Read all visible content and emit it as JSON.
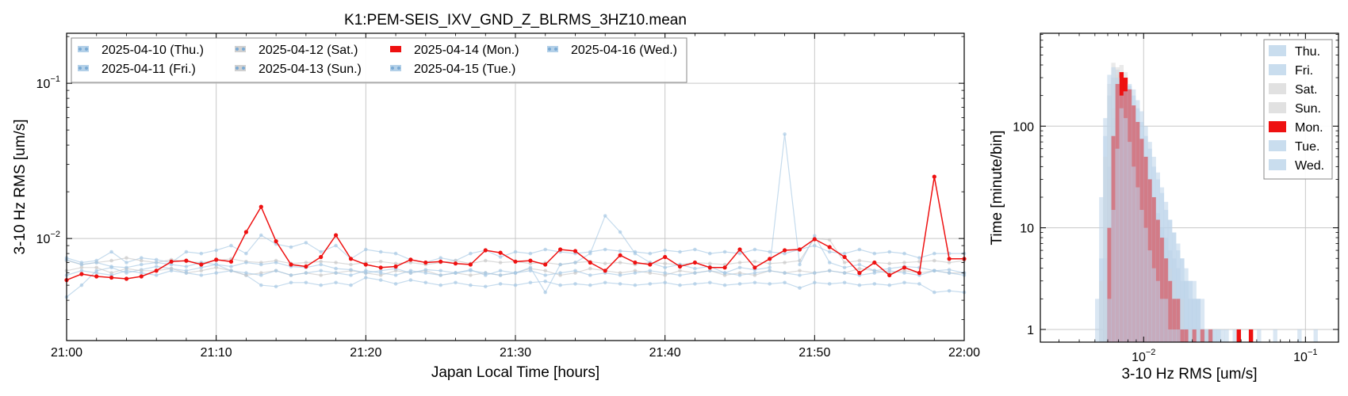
{
  "chart_data": [
    {
      "type": "line",
      "title": "K1:PEM-SEIS_IXV_GND_Z_BLRMS_3HZ10.mean",
      "xlabel": "Japan Local Time [hours]",
      "ylabel": "3-10 Hz RMS [um/s]",
      "xscale": "linear",
      "yscale": "log",
      "x_unit": "minutes after 21:00",
      "xlim": [
        0,
        60
      ],
      "ylim": [
        0.0022,
        0.21
      ],
      "xticks": [
        0,
        10,
        20,
        30,
        40,
        50,
        60
      ],
      "xtick_labels": [
        "21:00",
        "21:10",
        "21:20",
        "21:30",
        "21:40",
        "21:50",
        "22:00"
      ],
      "yticks": [
        0.01,
        0.1
      ],
      "ytick_labels": [
        "10^-2",
        "10^-1"
      ],
      "grid": true,
      "legend_position": "top-left",
      "legend_columns": 4,
      "x": [
        0,
        1,
        2,
        3,
        4,
        5,
        6,
        7,
        8,
        9,
        10,
        11,
        12,
        13,
        14,
        15,
        16,
        17,
        18,
        19,
        20,
        21,
        22,
        23,
        24,
        25,
        26,
        27,
        28,
        29,
        30,
        31,
        32,
        33,
        34,
        35,
        36,
        37,
        38,
        39,
        40,
        41,
        42,
        43,
        44,
        45,
        46,
        47,
        48,
        49,
        50,
        51,
        52,
        53,
        54,
        55,
        56,
        57,
        58,
        59,
        60
      ],
      "series": [
        {
          "name": "2025-04-10 (Thu.)",
          "color": "#a6c8e4",
          "values": [
            0.0042,
            0.005,
            0.0062,
            0.0065,
            0.006,
            0.0063,
            0.0066,
            0.0064,
            0.0062,
            0.0065,
            0.0068,
            0.0062,
            0.0058,
            0.005,
            0.0049,
            0.0052,
            0.0052,
            0.005,
            0.0052,
            0.005,
            0.0056,
            0.0054,
            0.0051,
            0.0054,
            0.0052,
            0.005,
            0.0052,
            0.005,
            0.0049,
            0.0051,
            0.005,
            0.0052,
            0.0053,
            0.005,
            0.0051,
            0.005,
            0.0052,
            0.0051,
            0.005,
            0.0051,
            0.0052,
            0.005,
            0.0051,
            0.0052,
            0.005,
            0.0051,
            0.0052,
            0.0051,
            0.0052,
            0.0048,
            0.0052,
            0.0051,
            0.0052,
            0.005,
            0.0051,
            0.005,
            0.0052,
            0.0051,
            0.0045,
            0.0046,
            0.0045
          ]
        },
        {
          "name": "2025-04-11 (Fri.)",
          "color": "#a6c8e4",
          "values": [
            0.0075,
            0.007,
            0.0072,
            0.0082,
            0.007,
            0.0075,
            0.0073,
            0.007,
            0.0082,
            0.008,
            0.0084,
            0.009,
            0.008,
            0.0105,
            0.0092,
            0.0088,
            0.0094,
            0.0082,
            0.009,
            0.0074,
            0.0085,
            0.0082,
            0.008,
            0.0073,
            0.007,
            0.0075,
            0.0072,
            0.008,
            0.0084,
            0.0076,
            0.0082,
            0.008,
            0.0085,
            0.0082,
            0.008,
            0.0082,
            0.0085,
            0.0083,
            0.0082,
            0.008,
            0.0084,
            0.0082,
            0.0085,
            0.008,
            0.0082,
            0.008,
            0.0085,
            0.0082,
            0.008,
            0.0085,
            0.009,
            0.0082,
            0.008,
            0.0085,
            0.008,
            0.0082,
            0.008,
            0.0075,
            0.008,
            0.008,
            0.008
          ]
        },
        {
          "name": "2025-04-12 (Sat.)",
          "color": "#c8c8c8",
          "values": [
            0.0062,
            0.0065,
            0.0065,
            0.006,
            0.0064,
            0.0062,
            0.0062,
            0.0064,
            0.006,
            0.0062,
            0.0065,
            0.0062,
            0.0058,
            0.006,
            0.0062,
            0.0058,
            0.006,
            0.0058,
            0.006,
            0.0062,
            0.006,
            0.0058,
            0.0062,
            0.006,
            0.0062,
            0.0058,
            0.006,
            0.0058,
            0.006,
            0.0058,
            0.006,
            0.0064,
            0.0062,
            0.0058,
            0.006,
            0.0064,
            0.0062,
            0.006,
            0.0062,
            0.006,
            0.0058,
            0.0062,
            0.006,
            0.0062,
            0.0058,
            0.006,
            0.0058,
            0.0062,
            0.006,
            0.0062,
            0.006,
            0.0062,
            0.006,
            0.0064,
            0.0062,
            0.006,
            0.0062,
            0.006,
            0.0062,
            0.006,
            0.006
          ]
        },
        {
          "name": "2025-04-13 (Sun.)",
          "color": "#c8c8c8",
          "values": [
            0.0072,
            0.0068,
            0.007,
            0.0072,
            0.0075,
            0.0072,
            0.007,
            0.0073,
            0.0071,
            0.007,
            0.0072,
            0.0074,
            0.0071,
            0.007,
            0.0072,
            0.0069,
            0.007,
            0.0071,
            0.007,
            0.0068,
            0.007,
            0.0071,
            0.0069,
            0.007,
            0.0068,
            0.007,
            0.0072,
            0.0069,
            0.0072,
            0.007,
            0.0071,
            0.0069,
            0.007,
            0.0068,
            0.007,
            0.0071,
            0.0069,
            0.007,
            0.0068,
            0.007,
            0.0069,
            0.0068,
            0.007,
            0.0069,
            0.0068,
            0.007,
            0.0071,
            0.0069,
            0.007,
            0.0072,
            0.01,
            0.0098,
            0.007,
            0.0072,
            0.007,
            0.0069,
            0.007,
            0.0071,
            0.0072,
            0.007,
            0.0072
          ]
        },
        {
          "name": "2025-04-14 (Mon.)",
          "color": "#ee1111",
          "values": [
            0.0054,
            0.0059,
            0.0057,
            0.0056,
            0.0055,
            0.0057,
            0.0062,
            0.0071,
            0.0072,
            0.0068,
            0.0073,
            0.0071,
            0.011,
            0.016,
            0.0096,
            0.0068,
            0.0066,
            0.0076,
            0.0105,
            0.0074,
            0.0068,
            0.0065,
            0.0066,
            0.0073,
            0.007,
            0.0071,
            0.0069,
            0.0068,
            0.0084,
            0.0081,
            0.0071,
            0.0072,
            0.0068,
            0.0085,
            0.0083,
            0.007,
            0.0062,
            0.0078,
            0.007,
            0.0068,
            0.0076,
            0.0066,
            0.007,
            0.0065,
            0.0065,
            0.0085,
            0.0065,
            0.0074,
            0.0084,
            0.0085,
            0.0099,
            0.0088,
            0.0076,
            0.006,
            0.007,
            0.0058,
            0.0065,
            0.006,
            0.025,
            0.0074,
            0.0074
          ]
        },
        {
          "name": "2025-04-15 (Tue.)",
          "color": "#a6c8e4",
          "values": [
            0.0073,
            0.0068,
            0.007,
            0.0066,
            0.0065,
            0.0068,
            0.007,
            0.0068,
            0.0066,
            0.007,
            0.0068,
            0.0066,
            0.007,
            0.0068,
            0.007,
            0.0066,
            0.0065,
            0.0068,
            0.0064,
            0.0063,
            0.006,
            0.0062,
            0.0064,
            0.006,
            0.0063,
            0.0062,
            0.006,
            0.0063,
            0.0058,
            0.0062,
            0.006,
            0.0065,
            0.0045,
            0.0068,
            0.007,
            0.008,
            0.014,
            0.011,
            0.008,
            0.007,
            0.0065,
            0.0068,
            0.0064,
            0.0066,
            0.006,
            0.0065,
            0.0063,
            0.0065,
            0.047,
            0.0068,
            0.0104,
            0.007,
            0.0065,
            0.0068,
            0.0062,
            0.0064,
            0.0066,
            0.0065,
            0.0062,
            0.0063,
            0.006
          ]
        },
        {
          "name": "2025-04-16 (Wed.)",
          "color": "#a6c8e4",
          "values": [
            0.0058,
            0.0062,
            0.006,
            0.0058,
            0.0062,
            0.006,
            0.0058,
            0.0062,
            0.006,
            0.0058,
            0.006,
            0.0062,
            0.006,
            0.0058,
            0.0062,
            0.0058,
            0.006,
            0.0062,
            0.006,
            0.0058,
            0.0062,
            0.006,
            0.0058,
            0.0062,
            0.006,
            0.0058,
            0.006,
            0.0062,
            0.006,
            0.0058,
            0.006,
            0.0062,
            0.0058,
            0.006,
            0.0062,
            0.0058,
            0.006,
            0.0058,
            0.006,
            0.0062,
            0.006,
            0.0058,
            0.006,
            0.0062,
            0.006,
            0.0058,
            0.006,
            0.0062,
            0.006,
            0.0058,
            0.006,
            0.0062,
            0.006,
            0.0058,
            0.006,
            0.0062,
            0.006,
            0.0058,
            0.0062,
            0.006,
            0.0058
          ]
        }
      ]
    },
    {
      "type": "bar",
      "subtype": "histogram",
      "xlabel": "3-10 Hz RMS [um/s]",
      "ylabel": "Time [minute/bin]",
      "xscale": "log",
      "yscale": "log",
      "xlim": [
        0.0023,
        0.16
      ],
      "ylim": [
        0.75,
        820
      ],
      "xticks": [
        0.01,
        0.1
      ],
      "xtick_labels": [
        "10^-2",
        "10^-1"
      ],
      "yticks": [
        1,
        10,
        100
      ],
      "ytick_labels": [
        "1",
        "10",
        "100"
      ],
      "grid": true,
      "legend_position": "top-right",
      "bin_edges_log10_start": -2.4,
      "bin_width_log10": 0.025,
      "series": [
        {
          "name": "Thu.",
          "color": "#bcd4ea",
          "counts": [
            0,
            0,
            0,
            0,
            2,
            20,
            80,
            200,
            300,
            360,
            280,
            200,
            140,
            100,
            70,
            50,
            35,
            25,
            18,
            14,
            10,
            8,
            6,
            5,
            4,
            3,
            3,
            2,
            2,
            2,
            1,
            1,
            1,
            1,
            1,
            0,
            1,
            0,
            1,
            0,
            0,
            0,
            1,
            0,
            1,
            0,
            0,
            0,
            1,
            0,
            0,
            0,
            0,
            0,
            1,
            0,
            0,
            0,
            1,
            0,
            0,
            0,
            0,
            0,
            1,
            0,
            0,
            0,
            1
          ]
        },
        {
          "name": "Fri.",
          "color": "#bcd4ea",
          "counts": [
            0,
            0,
            0,
            0,
            0,
            0,
            5,
            40,
            120,
            220,
            300,
            280,
            250,
            200,
            150,
            110,
            80,
            60,
            40,
            30,
            22,
            15,
            12,
            9,
            7,
            5,
            4,
            3,
            3,
            2,
            2,
            1,
            1,
            0,
            1,
            0,
            0,
            0,
            0,
            0,
            0,
            0,
            0,
            0,
            0,
            0,
            0,
            0,
            0,
            0,
            0,
            0,
            0,
            0,
            0,
            0,
            0,
            0,
            0,
            0,
            0,
            0,
            0,
            0,
            0,
            0,
            0,
            0,
            0,
            0
          ]
        },
        {
          "name": "Sat.",
          "color": "#d9d9d9",
          "counts": [
            0,
            0,
            0,
            0,
            0,
            3,
            50,
            260,
            420,
            380,
            300,
            200,
            140,
            90,
            60,
            40,
            25,
            15,
            10,
            7,
            5,
            4,
            3,
            2,
            2,
            1,
            1,
            1,
            0,
            1,
            0,
            1,
            0,
            0,
            0,
            0,
            0,
            0,
            0,
            0,
            0,
            0,
            0,
            0,
            0,
            0,
            0,
            0,
            0,
            0,
            0,
            0,
            0,
            0,
            0,
            0,
            0,
            0,
            0,
            0,
            0,
            0,
            0,
            0,
            0,
            0,
            0,
            0,
            0,
            0
          ]
        },
        {
          "name": "Sun.",
          "color": "#d9d9d9",
          "counts": [
            0,
            0,
            0,
            0,
            0,
            0,
            2,
            30,
            150,
            320,
            400,
            340,
            230,
            150,
            90,
            55,
            35,
            22,
            14,
            10,
            7,
            5,
            4,
            3,
            2,
            2,
            1,
            1,
            1,
            0,
            1,
            0,
            0,
            0,
            0,
            0,
            0,
            0,
            0,
            0,
            0,
            0,
            0,
            0,
            0,
            0,
            0,
            0,
            0,
            0,
            0,
            0,
            0,
            0,
            0,
            0,
            0,
            0,
            0,
            0,
            0,
            0,
            0,
            0,
            0,
            0,
            0,
            0,
            0,
            0
          ]
        },
        {
          "name": "Mon.",
          "color": "#ee1111",
          "counts": [
            0,
            0,
            0,
            0,
            0,
            0,
            0,
            10,
            80,
            260,
            340,
            300,
            230,
            160,
            110,
            75,
            50,
            30,
            20,
            12,
            8,
            5,
            3,
            2,
            2,
            1,
            1,
            0,
            1,
            0,
            1,
            0,
            1,
            0,
            0,
            0,
            0,
            0,
            0,
            1,
            0,
            0,
            1,
            0,
            0,
            0,
            0,
            0,
            0,
            0,
            0,
            0,
            0,
            0,
            0,
            0,
            0,
            0,
            0,
            0,
            0,
            0,
            0,
            0,
            0,
            0,
            0,
            0,
            0,
            0
          ]
        },
        {
          "name": "Tue.",
          "color": "#bcd4ea",
          "counts": [
            0,
            0,
            0,
            0,
            0,
            0,
            0,
            2,
            15,
            60,
            150,
            220,
            260,
            230,
            180,
            140,
            100,
            70,
            50,
            35,
            25,
            18,
            12,
            9,
            6,
            5,
            3,
            3,
            2,
            2,
            1,
            1,
            1,
            1,
            0,
            1,
            0,
            0,
            0,
            0,
            0,
            0,
            0,
            0,
            0,
            0,
            0,
            0,
            0,
            0,
            0,
            0,
            0,
            0,
            0,
            0,
            0,
            0,
            0,
            0,
            0,
            0,
            0,
            0,
            0,
            0,
            0,
            0,
            0,
            0
          ]
        },
        {
          "name": "Wed.",
          "color": "#bcd4ea",
          "counts": [
            0,
            0,
            0,
            0,
            0,
            5,
            120,
            320,
            380,
            300,
            200,
            120,
            70,
            40,
            25,
            15,
            10,
            6,
            4,
            3,
            2,
            2,
            1,
            1,
            1,
            0,
            0,
            0,
            0,
            0,
            0,
            0,
            0,
            0,
            0,
            0,
            0,
            0,
            0,
            0,
            0,
            0,
            0,
            0,
            0,
            0,
            0,
            0,
            0,
            0,
            0,
            0,
            0,
            0,
            0,
            0,
            0,
            0,
            0,
            0,
            0,
            0,
            0,
            0,
            0,
            0,
            0,
            0,
            0,
            0
          ]
        }
      ]
    }
  ]
}
